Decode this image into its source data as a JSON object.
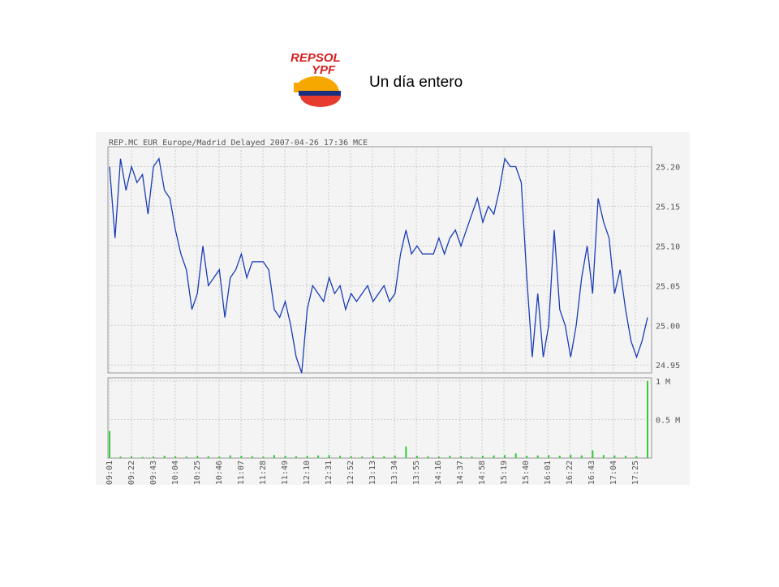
{
  "logo": {
    "line1": "REPSOL",
    "line2": "YPF"
  },
  "heading": "Un día entero",
  "chart_data": [
    {
      "type": "line",
      "title": "REP.MC EUR Europe/Madrid Delayed 2007-04-26 17:36 MCE",
      "color": "#1a3db5",
      "xticks": [
        "09:01",
        "09:22",
        "09:43",
        "10:04",
        "10:25",
        "10:46",
        "11:07",
        "11:28",
        "11:49",
        "12:10",
        "12:31",
        "12:52",
        "13:13",
        "13:34",
        "13:55",
        "14:16",
        "14:37",
        "14:58",
        "15:19",
        "15:40",
        "16:01",
        "16:22",
        "16:43",
        "17:04",
        "17:25"
      ],
      "values": [
        25.2,
        25.11,
        25.21,
        25.17,
        25.2,
        25.18,
        25.19,
        25.14,
        25.2,
        25.21,
        25.17,
        25.16,
        25.12,
        25.09,
        25.07,
        25.02,
        25.04,
        25.1,
        25.05,
        25.06,
        25.07,
        25.01,
        25.06,
        25.07,
        25.09,
        25.06,
        25.08,
        25.08,
        25.08,
        25.07,
        25.02,
        25.01,
        25.03,
        25.0,
        24.96,
        24.94,
        25.02,
        25.05,
        25.04,
        25.03,
        25.06,
        25.04,
        25.05,
        25.02,
        25.04,
        25.03,
        25.04,
        25.05,
        25.03,
        25.04,
        25.05,
        25.03,
        25.04,
        25.09,
        25.12,
        25.09,
        25.1,
        25.09,
        25.09,
        25.09,
        25.11,
        25.09,
        25.11,
        25.12,
        25.1,
        25.12,
        25.14,
        25.16,
        25.13,
        25.15,
        25.14,
        25.17,
        25.21,
        25.2,
        25.2,
        25.18,
        25.06,
        24.96,
        25.04,
        24.96,
        25.0,
        25.12,
        25.02,
        25.0,
        24.96,
        25.0,
        25.06,
        25.1,
        25.04,
        25.16,
        25.13,
        25.11,
        25.04,
        25.07,
        25.02,
        24.98,
        24.96,
        24.98,
        25.01
      ],
      "ylim": [
        24.94,
        25.225
      ],
      "yticks": [
        24.95,
        {
          "value": 25.0,
          "label": "25.00"
        },
        25.05,
        {
          "value": 25.1,
          "label": "25.10"
        },
        25.15,
        {
          "value": 25.2,
          "label": "25.20"
        }
      ],
      "grid": true
    },
    {
      "type": "bar",
      "color": "#33cc33",
      "values": [
        350000,
        20000,
        25000,
        15000,
        20000,
        30000,
        25000,
        20000,
        30000,
        25000,
        20000,
        35000,
        30000,
        25000,
        20000,
        40000,
        30000,
        25000,
        30000,
        35000,
        40000,
        30000,
        25000,
        20000,
        30000,
        25000,
        35000,
        150000,
        30000,
        25000,
        20000,
        30000,
        25000,
        20000,
        30000,
        35000,
        40000,
        60000,
        30000,
        35000,
        40000,
        30000,
        45000,
        35000,
        100000,
        40000,
        35000,
        30000,
        25000,
        1000000
      ],
      "ylim": [
        0,
        1040000
      ],
      "yticks": [
        {
          "value": 500000,
          "label": "0.5 M"
        },
        {
          "value": 1000000,
          "label": "1 M"
        }
      ],
      "grid": true
    }
  ]
}
